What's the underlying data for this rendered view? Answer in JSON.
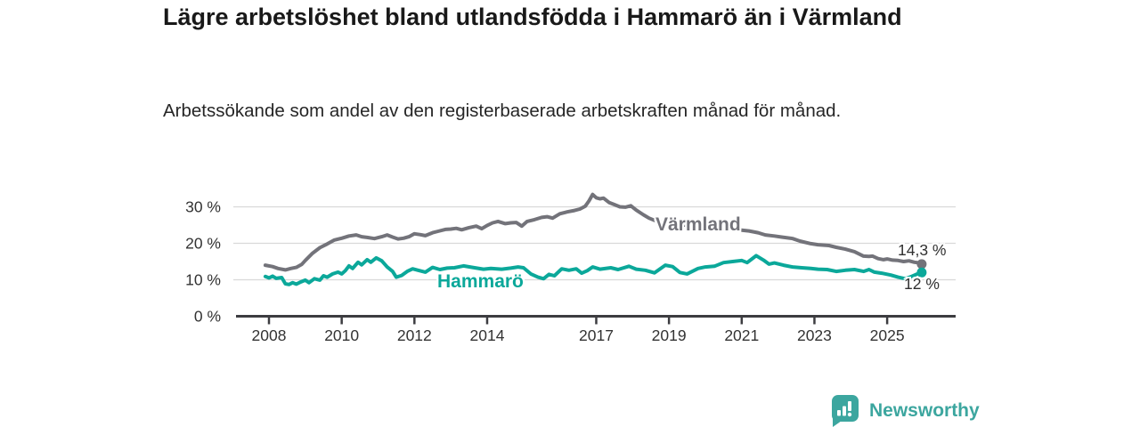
{
  "header": {
    "title": "Lägre arbetslöshet bland utlandsfödda i Hammarö än i Värmland",
    "subtitle": "Arbetssökande som andel av den registerbaserade arbetskraften månad för månad."
  },
  "footer": {
    "brand": "Newsworthy"
  },
  "colors": {
    "varmland_line": "#73737a",
    "hammaro_line": "#0ba89a",
    "brand_teal": "#3ca69f",
    "gridline": "#d9d9d9",
    "axis": "#3c3c40",
    "text_dark": "#191919"
  },
  "chart_data": {
    "type": "line",
    "title": "Lägre arbetslöshet bland utlandsfödda i Hammarö än i Värmland",
    "subtitle": "Arbetssökande som andel av den registerbaserade arbetskraften månad för månad.",
    "xlabel": "",
    "ylabel": "",
    "y_unit": "%",
    "grid": "horizontal",
    "legend_position": "inline-labels",
    "ylim": [
      0,
      35
    ],
    "xlim": [
      2007.9,
      2026.1
    ],
    "y_gridlines": [
      10,
      20,
      30
    ],
    "y_tick_values": [
      0,
      10,
      20,
      30
    ],
    "y_tick_labels": [
      "0 %",
      "10 %",
      "20 %",
      "30 %"
    ],
    "x_ticks": [
      2008,
      2010,
      2012,
      2014,
      2017,
      2019,
      2021,
      2023,
      2025
    ],
    "x_tick_labels": [
      "2008",
      "2010",
      "2012",
      "2014",
      "2017",
      "2019",
      "2021",
      "2023",
      "2025"
    ],
    "series": [
      {
        "name": "Värmland",
        "color": "#73737a",
        "end_label": "14,3 %",
        "end_value": 14.3,
        "points": [
          [
            2007.9,
            14.0
          ],
          [
            2008.1,
            13.6
          ],
          [
            2008.25,
            13.1
          ],
          [
            2008.45,
            12.7
          ],
          [
            2008.6,
            13.1
          ],
          [
            2008.75,
            13.4
          ],
          [
            2008.9,
            14.2
          ],
          [
            2009.0,
            15.3
          ],
          [
            2009.2,
            17.3
          ],
          [
            2009.4,
            18.8
          ],
          [
            2009.6,
            19.8
          ],
          [
            2009.8,
            20.9
          ],
          [
            2010.0,
            21.4
          ],
          [
            2010.2,
            22.0
          ],
          [
            2010.4,
            22.3
          ],
          [
            2010.55,
            21.8
          ],
          [
            2010.7,
            21.6
          ],
          [
            2010.9,
            21.3
          ],
          [
            2011.1,
            21.8
          ],
          [
            2011.25,
            22.3
          ],
          [
            2011.4,
            21.7
          ],
          [
            2011.55,
            21.2
          ],
          [
            2011.7,
            21.4
          ],
          [
            2011.85,
            21.8
          ],
          [
            2012.0,
            22.6
          ],
          [
            2012.15,
            22.4
          ],
          [
            2012.3,
            22.1
          ],
          [
            2012.5,
            22.9
          ],
          [
            2012.65,
            23.3
          ],
          [
            2012.85,
            23.8
          ],
          [
            2013.0,
            23.9
          ],
          [
            2013.15,
            24.1
          ],
          [
            2013.3,
            23.7
          ],
          [
            2013.5,
            24.3
          ],
          [
            2013.7,
            24.7
          ],
          [
            2013.85,
            24.0
          ],
          [
            2014.0,
            24.9
          ],
          [
            2014.15,
            25.6
          ],
          [
            2014.3,
            26.0
          ],
          [
            2014.5,
            25.4
          ],
          [
            2014.65,
            25.6
          ],
          [
            2014.8,
            25.7
          ],
          [
            2014.95,
            24.7
          ],
          [
            2015.1,
            26.0
          ],
          [
            2015.3,
            26.5
          ],
          [
            2015.5,
            27.1
          ],
          [
            2015.65,
            27.3
          ],
          [
            2015.8,
            26.9
          ],
          [
            2016.0,
            28.1
          ],
          [
            2016.2,
            28.6
          ],
          [
            2016.4,
            29.0
          ],
          [
            2016.55,
            29.4
          ],
          [
            2016.7,
            30.2
          ],
          [
            2016.8,
            31.6
          ],
          [
            2016.9,
            33.4
          ],
          [
            2017.0,
            32.5
          ],
          [
            2017.1,
            32.2
          ],
          [
            2017.2,
            32.4
          ],
          [
            2017.35,
            31.2
          ],
          [
            2017.5,
            30.6
          ],
          [
            2017.65,
            30.0
          ],
          [
            2017.8,
            29.9
          ],
          [
            2017.95,
            30.3
          ],
          [
            2018.1,
            29.1
          ],
          [
            2018.3,
            27.8
          ],
          [
            2018.45,
            26.9
          ],
          [
            2018.6,
            26.3
          ],
          [
            2018.8,
            25.9
          ],
          [
            2019.0,
            25.6
          ],
          [
            2019.25,
            25.2
          ],
          [
            2019.5,
            24.9
          ],
          [
            2019.75,
            24.7
          ],
          [
            2020.0,
            24.5
          ],
          [
            2020.25,
            24.3
          ],
          [
            2020.5,
            24.1
          ],
          [
            2020.75,
            23.8
          ],
          [
            2021.0,
            23.6
          ],
          [
            2021.2,
            23.4
          ],
          [
            2021.45,
            22.9
          ],
          [
            2021.65,
            22.3
          ],
          [
            2021.9,
            22.0
          ],
          [
            2022.1,
            21.7
          ],
          [
            2022.4,
            21.3
          ],
          [
            2022.6,
            20.6
          ],
          [
            2022.9,
            19.9
          ],
          [
            2023.1,
            19.6
          ],
          [
            2023.4,
            19.4
          ],
          [
            2023.6,
            18.9
          ],
          [
            2023.85,
            18.4
          ],
          [
            2024.1,
            17.7
          ],
          [
            2024.35,
            16.5
          ],
          [
            2024.5,
            16.4
          ],
          [
            2024.6,
            16.5
          ],
          [
            2024.75,
            15.8
          ],
          [
            2024.9,
            15.5
          ],
          [
            2025.0,
            15.7
          ],
          [
            2025.15,
            15.4
          ],
          [
            2025.3,
            15.3
          ],
          [
            2025.45,
            15.0
          ],
          [
            2025.6,
            15.2
          ],
          [
            2025.75,
            14.8
          ],
          [
            2025.9,
            14.6
          ],
          [
            2025.95,
            14.3
          ]
        ]
      },
      {
        "name": "Hammarö",
        "color": "#0ba89a",
        "end_label": "12 %",
        "end_value": 12.0,
        "points": [
          [
            2007.9,
            10.9
          ],
          [
            2008.0,
            10.5
          ],
          [
            2008.1,
            11.0
          ],
          [
            2008.2,
            10.4
          ],
          [
            2008.35,
            10.6
          ],
          [
            2008.45,
            8.9
          ],
          [
            2008.55,
            8.7
          ],
          [
            2008.65,
            9.2
          ],
          [
            2008.75,
            8.8
          ],
          [
            2008.85,
            9.3
          ],
          [
            2009.0,
            9.9
          ],
          [
            2009.1,
            9.2
          ],
          [
            2009.25,
            10.3
          ],
          [
            2009.4,
            9.9
          ],
          [
            2009.5,
            11.1
          ],
          [
            2009.6,
            10.7
          ],
          [
            2009.75,
            11.6
          ],
          [
            2009.9,
            12.1
          ],
          [
            2010.0,
            11.6
          ],
          [
            2010.1,
            12.5
          ],
          [
            2010.2,
            13.8
          ],
          [
            2010.3,
            13.1
          ],
          [
            2010.45,
            14.8
          ],
          [
            2010.55,
            14.1
          ],
          [
            2010.7,
            15.5
          ],
          [
            2010.8,
            14.8
          ],
          [
            2010.95,
            16.0
          ],
          [
            2011.1,
            15.2
          ],
          [
            2011.25,
            13.5
          ],
          [
            2011.4,
            12.3
          ],
          [
            2011.5,
            10.7
          ],
          [
            2011.65,
            11.2
          ],
          [
            2011.8,
            12.3
          ],
          [
            2011.95,
            13.0
          ],
          [
            2012.1,
            12.6
          ],
          [
            2012.3,
            12.1
          ],
          [
            2012.5,
            13.4
          ],
          [
            2012.7,
            12.8
          ],
          [
            2012.9,
            13.2
          ],
          [
            2013.1,
            13.3
          ],
          [
            2013.35,
            13.8
          ],
          [
            2013.6,
            13.4
          ],
          [
            2013.9,
            12.9
          ],
          [
            2014.1,
            13.1
          ],
          [
            2014.4,
            12.9
          ],
          [
            2014.65,
            13.2
          ],
          [
            2014.85,
            13.5
          ],
          [
            2015.0,
            13.3
          ],
          [
            2015.2,
            11.6
          ],
          [
            2015.4,
            10.7
          ],
          [
            2015.55,
            10.3
          ],
          [
            2015.7,
            11.5
          ],
          [
            2015.85,
            11.1
          ],
          [
            2016.05,
            13.0
          ],
          [
            2016.25,
            12.6
          ],
          [
            2016.45,
            13.0
          ],
          [
            2016.6,
            11.8
          ],
          [
            2016.75,
            12.5
          ],
          [
            2016.9,
            13.5
          ],
          [
            2017.1,
            12.9
          ],
          [
            2017.4,
            13.3
          ],
          [
            2017.6,
            12.8
          ],
          [
            2017.9,
            13.7
          ],
          [
            2018.1,
            12.9
          ],
          [
            2018.35,
            12.6
          ],
          [
            2018.6,
            11.9
          ],
          [
            2018.9,
            14.0
          ],
          [
            2019.1,
            13.6
          ],
          [
            2019.3,
            12.0
          ],
          [
            2019.5,
            11.6
          ],
          [
            2019.8,
            13.1
          ],
          [
            2020.0,
            13.5
          ],
          [
            2020.25,
            13.7
          ],
          [
            2020.5,
            14.7
          ],
          [
            2020.75,
            15.0
          ],
          [
            2021.0,
            15.3
          ],
          [
            2021.15,
            14.7
          ],
          [
            2021.4,
            16.6
          ],
          [
            2021.6,
            15.4
          ],
          [
            2021.75,
            14.3
          ],
          [
            2021.9,
            14.6
          ],
          [
            2022.15,
            14.0
          ],
          [
            2022.4,
            13.5
          ],
          [
            2022.65,
            13.3
          ],
          [
            2022.9,
            13.1
          ],
          [
            2023.1,
            12.9
          ],
          [
            2023.35,
            12.8
          ],
          [
            2023.6,
            12.3
          ],
          [
            2023.85,
            12.6
          ],
          [
            2024.1,
            12.8
          ],
          [
            2024.35,
            12.3
          ],
          [
            2024.5,
            12.8
          ],
          [
            2024.65,
            12.1
          ],
          [
            2024.85,
            11.8
          ],
          [
            2025.1,
            11.3
          ],
          [
            2025.3,
            10.7
          ],
          [
            2025.5,
            10.3
          ],
          [
            2025.65,
            10.8
          ],
          [
            2025.8,
            11.5
          ],
          [
            2025.95,
            12.0
          ]
        ]
      }
    ]
  }
}
